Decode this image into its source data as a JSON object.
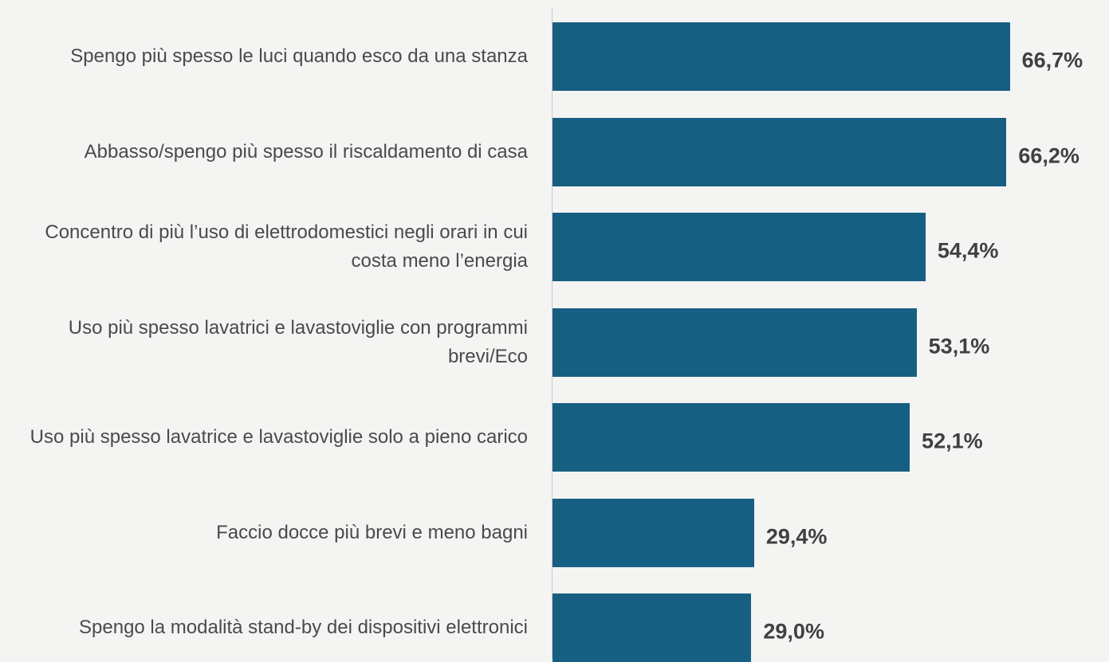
{
  "chart_data": {
    "type": "barh",
    "categories": [
      "Spengo più spesso le luci quando esco da una stanza",
      "Abbasso/spengo più spesso il riscaldamento di casa",
      "Concentro di più l’uso di elettrodomestici negli orari in cui costa meno l’energia",
      "Uso più spesso lavatrici e lavastoviglie con programmi brevi/Eco",
      "Uso più spesso lavatrice e lavastoviglie solo a pieno carico",
      "Faccio docce più brevi e meno bagni",
      "Spengo la modalità stand-by dei dispositivi elettronici"
    ],
    "values": [
      66.7,
      66.2,
      54.4,
      53.1,
      52.1,
      29.4,
      29.0
    ],
    "value_labels": [
      "66,7%",
      "66,2%",
      "54,4%",
      "53,1%",
      "52,1%",
      "29,4%",
      "29,0%"
    ],
    "color": "#175f82",
    "xlim": [
      0,
      80
    ]
  }
}
